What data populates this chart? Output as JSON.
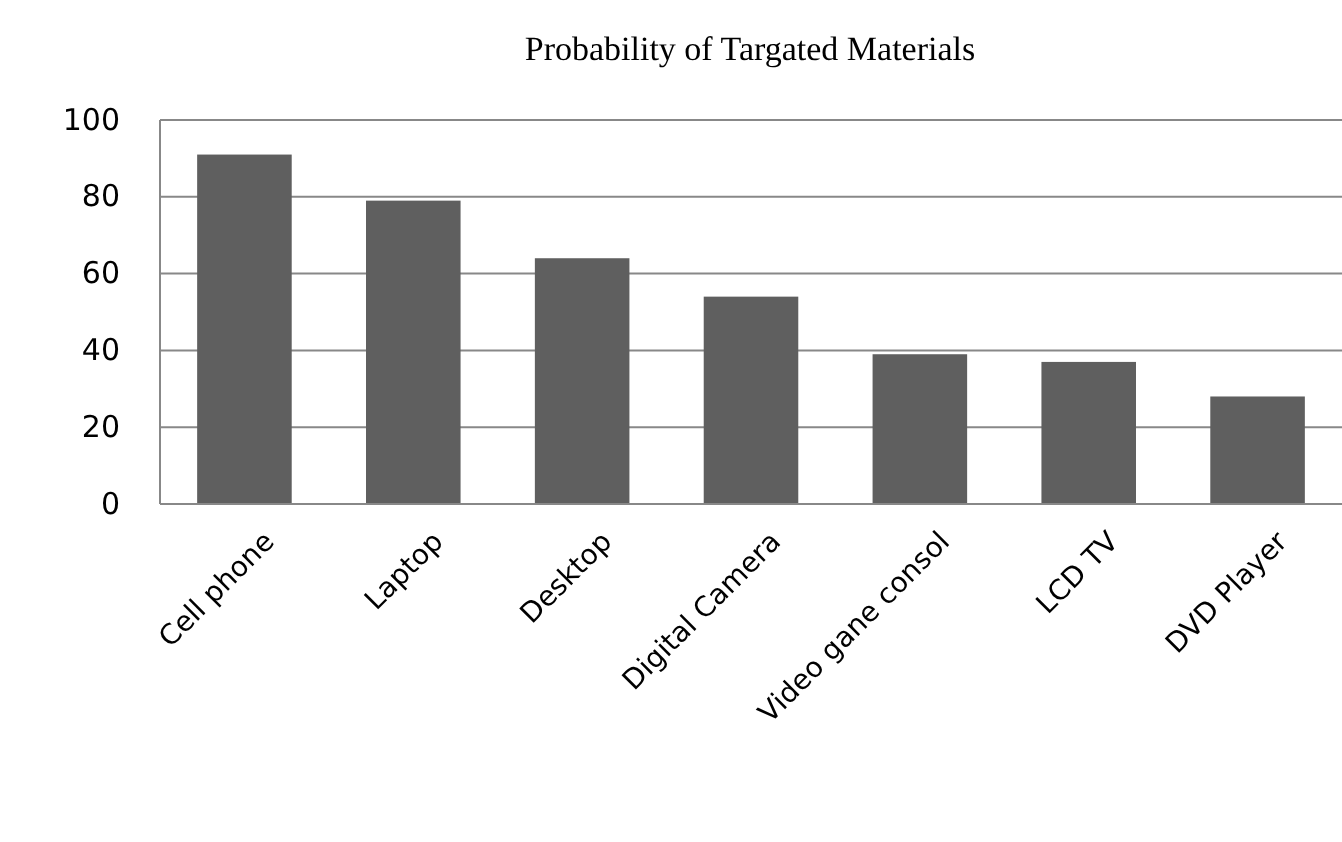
{
  "chart_data": {
    "type": "bar",
    "title": "Probability of Targated Materials",
    "categories": [
      "Cell phone",
      "Laptop",
      "Desktop",
      "Digital Camera",
      "Video gane consol",
      "LCD TV",
      "DVD Player"
    ],
    "values": [
      91,
      79,
      64,
      54,
      39,
      37,
      28
    ],
    "color": "#5f5f5f",
    "ylim": [
      0,
      100
    ],
    "yticks": [
      0,
      20,
      40,
      60,
      80,
      100
    ],
    "grid": "y"
  }
}
